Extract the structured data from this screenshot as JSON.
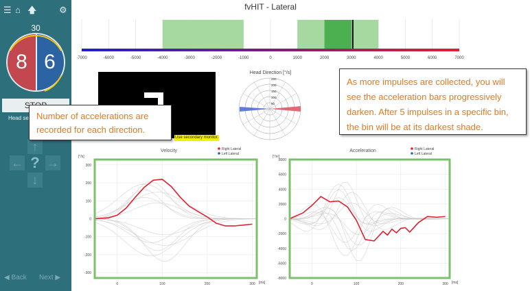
{
  "window": {
    "title": "fvHIT - Lateral"
  },
  "sidebar": {
    "icons": [
      "menu-icon",
      "home-icon",
      "up-arrow-icon",
      "gear-icon"
    ],
    "counter": "30",
    "left_count": "8",
    "right_count": "6",
    "stop_label": "STOP",
    "head_sensor_label": "Head sen",
    "back_label": "Back",
    "next_label": "Next"
  },
  "bin_chart": {
    "tick_labels": [
      "-7000",
      "-6000",
      "-5000",
      "-4000",
      "-3000",
      "-2000",
      "-1000",
      "0",
      "1000",
      "2000",
      "3000",
      "4000",
      "5000",
      "6000",
      "7000"
    ],
    "range": [
      -7000,
      7000
    ],
    "bins": [
      {
        "from": -4000,
        "to": -1000,
        "shade": "light"
      },
      {
        "from": 1000,
        "to": 2000,
        "shade": "light"
      },
      {
        "from": 2000,
        "to": 3000,
        "shade": "dark"
      },
      {
        "from": 3000,
        "to": 4000,
        "shade": "light"
      }
    ],
    "marker_value": 3050,
    "colors": {
      "light": "#a6d9a0",
      "dark": "#4caf50",
      "left": "#1f1fd0",
      "right": "#e0202e"
    }
  },
  "stimulus": {
    "secondary_monitor_text": "Use secondary monitor."
  },
  "head_direction": {
    "title": "Head Direction [°/s]",
    "ring_labels": [
      "250",
      "200",
      "150",
      "100",
      "50"
    ]
  },
  "velocity": {
    "title": "Velocity",
    "unit_y": "[°/s]",
    "unit_x": "[ms]",
    "legend": [
      "Right Lateral",
      "Left Lateral"
    ],
    "y_ticks": [
      "300",
      "200",
      "100",
      "0",
      "-100",
      "-200",
      "-300"
    ],
    "x_ticks": [
      "0",
      "100",
      "200",
      "300"
    ],
    "xlim": [
      -50,
      310
    ],
    "ylim": [
      -330,
      330
    ]
  },
  "acceleration": {
    "title": "Acceleration",
    "unit_y": "[°/s²]",
    "unit_x": "[ms]",
    "legend": [
      "Right Lateral",
      "Left Lateral"
    ],
    "y_ticks": [
      "8000",
      "6000",
      "4000",
      "2000",
      "0",
      "-2000",
      "-4000",
      "-6000",
      "-8000"
    ],
    "x_ticks": [
      "0",
      "100",
      "200",
      "300"
    ],
    "xlim": [
      -50,
      310
    ],
    "ylim": [
      -8000,
      8000
    ]
  },
  "callouts": {
    "left": "Number of accelerations are recorded for each direction.",
    "right": "As more impulses are collected, you will see the acceleration bars progressively darken. After 5 impulses in a specific bin, the bin will be at its darkest shade."
  },
  "chart_data": [
    {
      "type": "line",
      "title": "Velocity",
      "xlabel": "[ms]",
      "ylabel": "[°/s]",
      "ylim": [
        -330,
        330
      ],
      "series": [
        {
          "name": "Right Lateral",
          "x": [
            -50,
            -20,
            0,
            20,
            40,
            60,
            80,
            100,
            120,
            140,
            160,
            180,
            200,
            220,
            240,
            260,
            280,
            300
          ],
          "y": [
            0,
            5,
            20,
            60,
            120,
            175,
            215,
            220,
            180,
            120,
            70,
            40,
            10,
            -25,
            -40,
            -40,
            -35,
            -30
          ]
        }
      ]
    },
    {
      "type": "line",
      "title": "Acceleration",
      "xlabel": "[ms]",
      "ylabel": "[°/s²]",
      "ylim": [
        -8000,
        8000
      ],
      "series": [
        {
          "name": "Right Lateral",
          "x": [
            -50,
            -20,
            0,
            20,
            40,
            60,
            80,
            100,
            120,
            140,
            160,
            170,
            180,
            190,
            200,
            210,
            220,
            240,
            260,
            280,
            300
          ],
          "y": [
            0,
            800,
            1800,
            3000,
            2300,
            2400,
            1600,
            -200,
            -2800,
            -3000,
            -1700,
            -2200,
            -1400,
            -1900,
            -1300,
            -1200,
            -1800,
            -500,
            300,
            200,
            300
          ]
        }
      ]
    }
  ]
}
